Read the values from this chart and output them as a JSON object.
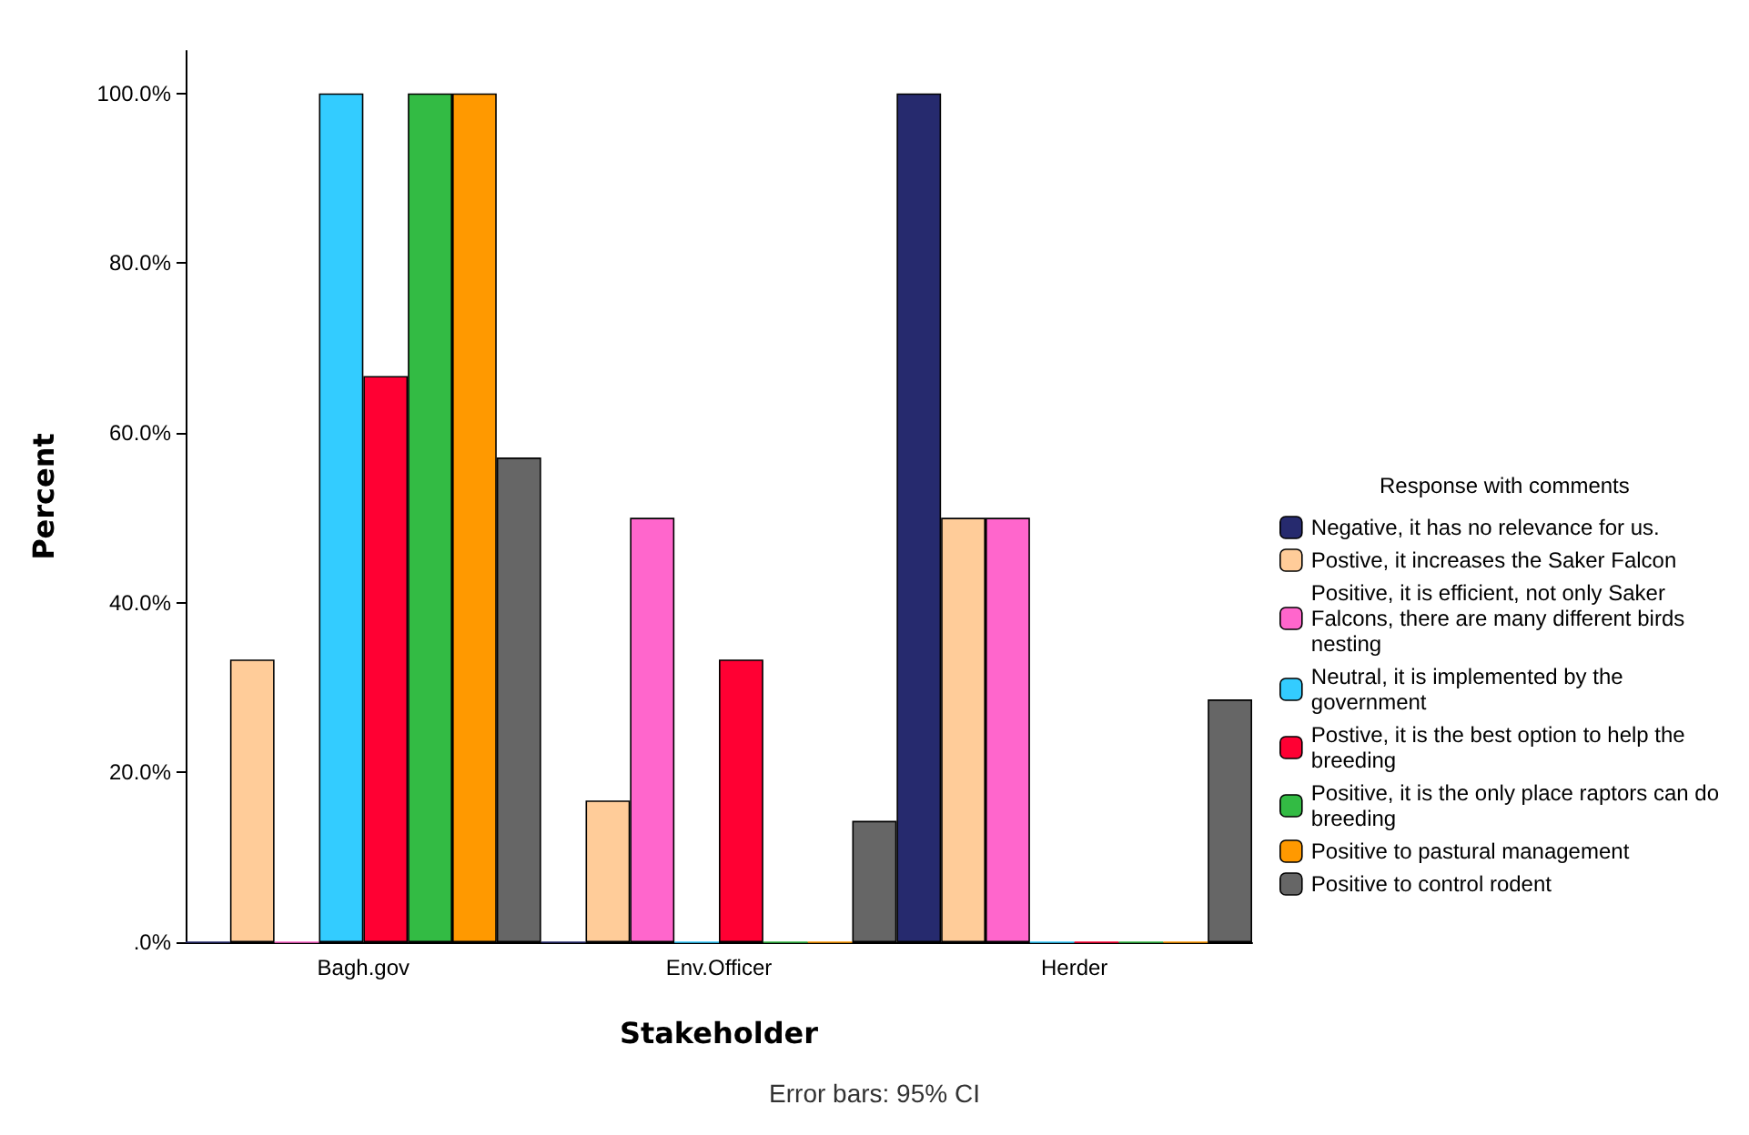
{
  "chart_data": {
    "type": "bar",
    "xlabel": "Stakeholder",
    "ylabel": "Percent",
    "legend_title": "Response with comments",
    "annotations": [
      "Error bars: 95% CI"
    ],
    "categories": [
      "Bagh.gov",
      "Env.Officer",
      "Herder"
    ],
    "series": [
      {
        "name": "Negative, it has no relevance for us.",
        "color": "#262a6e",
        "values": [
          0,
          0,
          100
        ]
      },
      {
        "name": "Postive, it increases the Saker Falcon",
        "color": "#ffcc99",
        "values": [
          33.3,
          16.7,
          50
        ]
      },
      {
        "name": "Positive, it is efficient, not only Saker Falcons, there are many different birds nesting",
        "color": "#ff66cc",
        "values": [
          0,
          50,
          50
        ]
      },
      {
        "name": "Neutral, it is implemented by the government",
        "color": "#33ccff",
        "values": [
          100,
          0,
          0
        ]
      },
      {
        "name": "Postive, it is the best option to help the breeding",
        "color": "#ff0033",
        "values": [
          66.7,
          33.3,
          0
        ]
      },
      {
        "name": "Positive, it is the only place raptors can do breeding",
        "color": "#33bb44",
        "values": [
          100,
          0,
          0
        ]
      },
      {
        "name": "Positive to pastural management",
        "color": "#ff9900",
        "values": [
          100,
          0,
          0
        ]
      },
      {
        "name": "Positive to control rodent",
        "color": "#666666",
        "values": [
          57.1,
          14.3,
          28.6
        ]
      }
    ],
    "ylim": [
      0,
      105
    ],
    "yticks": [
      {
        "value": 0,
        "label": ".0%"
      },
      {
        "value": 20,
        "label": "20.0%"
      },
      {
        "value": 40,
        "label": "40.0%"
      },
      {
        "value": 60,
        "label": "60.0%"
      },
      {
        "value": 80,
        "label": "80.0%"
      },
      {
        "value": 100,
        "label": "100.0%"
      }
    ],
    "grid": false,
    "legend": "right"
  }
}
